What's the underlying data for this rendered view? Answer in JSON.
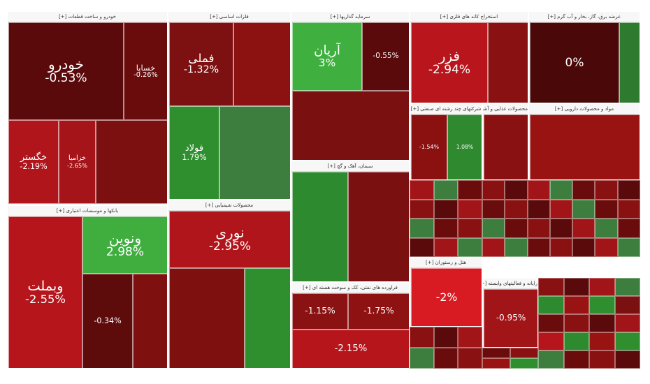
{
  "chart_data": {
    "type": "treemap",
    "sectors": [
      {
        "name": "خودرو و ساخت قطعات [+]",
        "tiles": [
          {
            "symbol": "خودرو",
            "change": "-0.53%",
            "color": "#5a0a0a",
            "weight": 3.2
          },
          {
            "symbol": "خساپا",
            "change": "-0.26%",
            "color": "#6a0c0c",
            "weight": 1.4
          },
          {
            "symbol": "خگستر",
            "change": "-2.19%",
            "color": "#b0151c",
            "weight": 1.6
          },
          {
            "symbol": "خزامیا",
            "change": "-2.65%",
            "color": "#a51419",
            "weight": 1.0
          },
          {
            "symbol": "",
            "change": "",
            "color": "#7c0f10",
            "weight": 1.2
          }
        ]
      },
      {
        "name": "فلزات اساسی [+]",
        "tiles": [
          {
            "symbol": "فملی",
            "change": "-1.32%",
            "color": "#7d1010",
            "weight": 1.6
          },
          {
            "symbol": "فولاد",
            "change": "1.79%",
            "color": "#2f8f2f",
            "weight": 1.5
          },
          {
            "symbol": "",
            "change": "",
            "color": "#8c1212",
            "weight": 1.3
          },
          {
            "symbol": "",
            "change": "",
            "color": "#3d7d3d",
            "weight": 0.9
          }
        ]
      },
      {
        "name": "سرمایه گذاریها [+]",
        "tiles": [
          {
            "symbol": "آریان",
            "change": "3%",
            "color": "#3fb03f",
            "weight": 1.2
          },
          {
            "symbol": "",
            "change": "-0.55%",
            "color": "#5a0a0a",
            "weight": 1.0
          },
          {
            "symbol": "",
            "change": "",
            "color": "#7a1010",
            "weight": 1.2
          }
        ]
      },
      {
        "name": "استخراج کانه های فلزی [+]",
        "tiles": [
          {
            "symbol": "فزر",
            "change": "-2.94%",
            "color": "#b8161c",
            "weight": 1.8
          },
          {
            "symbol": "",
            "change": "",
            "color": "#8a1111",
            "weight": 0.8
          }
        ]
      },
      {
        "name": "عرضه برق، گاز، بخار و آب گرم [+]",
        "tiles": [
          {
            "symbol": "",
            "change": "0%",
            "color": "#4a0808",
            "weight": 1.8
          },
          {
            "symbol": "",
            "change": "",
            "color": "#2e7a2e",
            "weight": 0.6
          }
        ]
      },
      {
        "name": "بانکها و موسسات اعتباری [+]",
        "tiles": [
          {
            "symbol": "وبملت",
            "change": "-2.55%",
            "color": "#b5151b",
            "weight": 2.5
          },
          {
            "symbol": "ونوین",
            "change": "2.98%",
            "color": "#3fae3f",
            "weight": 1.2
          },
          {
            "symbol": "",
            "change": "-0.34%",
            "color": "#5e0b0b",
            "weight": 0.9
          },
          {
            "symbol": "",
            "change": "",
            "color": "#7e1010",
            "weight": 0.9
          }
        ]
      },
      {
        "name": "محصولات شیمیایی [+]",
        "tiles": [
          {
            "symbol": "نوری",
            "change": "-2.95%",
            "color": "#b0151b",
            "weight": 1.7
          },
          {
            "symbol": "",
            "change": "",
            "color": "#7f1010",
            "weight": 1.6
          },
          {
            "symbol": "",
            "change": "",
            "color": "#2f8f2f",
            "weight": 0.8
          }
        ]
      },
      {
        "name": "سیمان، آهک و گچ [+]",
        "tiles": [
          {
            "symbol": "",
            "change": "",
            "color": "#2e8a2e",
            "weight": 1.0
          },
          {
            "symbol": "",
            "change": "",
            "color": "#7a1010",
            "weight": 1.2
          }
        ]
      },
      {
        "name": "فراورده های نفتی، کک و سوخت هسته ای [+]",
        "tiles": [
          {
            "symbol": "",
            "change": "-1.15%",
            "color": "#8a1212",
            "weight": 1.0
          },
          {
            "symbol": "",
            "change": "-1.75%",
            "color": "#8f1212",
            "weight": 1.0
          },
          {
            "symbol": "",
            "change": "-2.15%",
            "color": "#b5151b",
            "weight": 0.9
          }
        ]
      },
      {
        "name": "شرکتهای چند رشته ای صنعتی [+]",
        "tiles": [
          {
            "symbol": "",
            "change": "-1.54%",
            "color": "#8b1111",
            "weight": 1.2
          },
          {
            "symbol": "",
            "change": "1.08%",
            "color": "#2f8a2f",
            "weight": 1.0
          }
        ]
      },
      {
        "name": "محصولات غذایی و آشامیدنی [+]",
        "tiles": [
          {
            "symbol": "",
            "change": "",
            "color": "#8a1111",
            "weight": 1.0
          }
        ]
      },
      {
        "name": "مواد و محصولات دارویی [+]",
        "tiles": [
          {
            "symbol": "",
            "change": "",
            "color": "#9a1313",
            "weight": 1.0
          }
        ]
      },
      {
        "name": "هتل و رستوران [+]",
        "tiles": [
          {
            "symbol": "",
            "change": "-2%",
            "color": "#d81b22",
            "weight": 1.0
          }
        ]
      },
      {
        "name": "رایانه و فعالیتهای وابسته [+]",
        "tiles": [
          {
            "symbol": "",
            "change": "-0.95%",
            "color": "#a11417",
            "weight": 1.0
          }
        ]
      }
    ]
  }
}
